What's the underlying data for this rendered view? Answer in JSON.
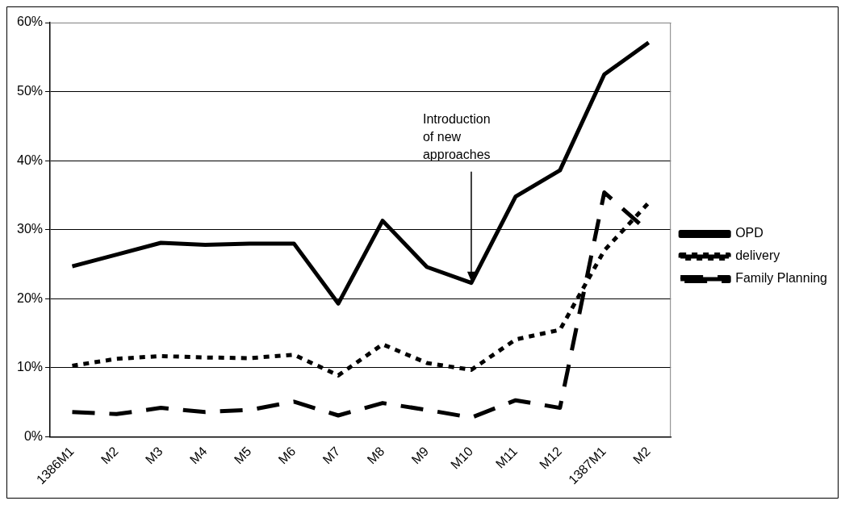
{
  "chart_data": {
    "type": "line",
    "categories": [
      "1386M1",
      "M2",
      "M3",
      "M4",
      "M5",
      "M6",
      "M7",
      "M8",
      "M9",
      "M10",
      "M11",
      "M12",
      "1387M1",
      "M2"
    ],
    "series": [
      {
        "name": "OPD",
        "color": "#000000",
        "line_style": "solid",
        "values": [
          24.7,
          26.4,
          28.1,
          27.8,
          28.0,
          28.0,
          19.3,
          31.3,
          24.6,
          22.3,
          34.8,
          38.6,
          52.5,
          57.1
        ]
      },
      {
        "name": "delivery",
        "color": "#000000",
        "line_style": "dotted",
        "values": [
          10.3,
          11.3,
          11.7,
          11.5,
          11.4,
          11.9,
          8.9,
          13.4,
          10.7,
          9.7,
          14.1,
          15.5,
          27,
          33.9
        ]
      },
      {
        "name": "Family Planning",
        "color": "#000000",
        "line_style": "dashed",
        "values": [
          3.6,
          3.3,
          4.2,
          3.6,
          3.9,
          5.1,
          3.1,
          4.9,
          3.9,
          2.8,
          5.3,
          4.2,
          35.4,
          29.7
        ]
      }
    ],
    "ylim": [
      0,
      60
    ],
    "yticks": [
      {
        "value": 0,
        "label": "0%"
      },
      {
        "value": 10,
        "label": "10%"
      },
      {
        "value": 20,
        "label": "20%"
      },
      {
        "value": 30,
        "label": "30%"
      },
      {
        "value": 40,
        "label": "40%"
      },
      {
        "value": 50,
        "label": "50%"
      },
      {
        "value": 60,
        "label": "60%"
      }
    ],
    "grid": "y",
    "legend": "right",
    "marker": "none",
    "annotations": [
      {
        "text": "Introduction of new approaches",
        "x": "M10",
        "y": 22.3
      }
    ]
  }
}
